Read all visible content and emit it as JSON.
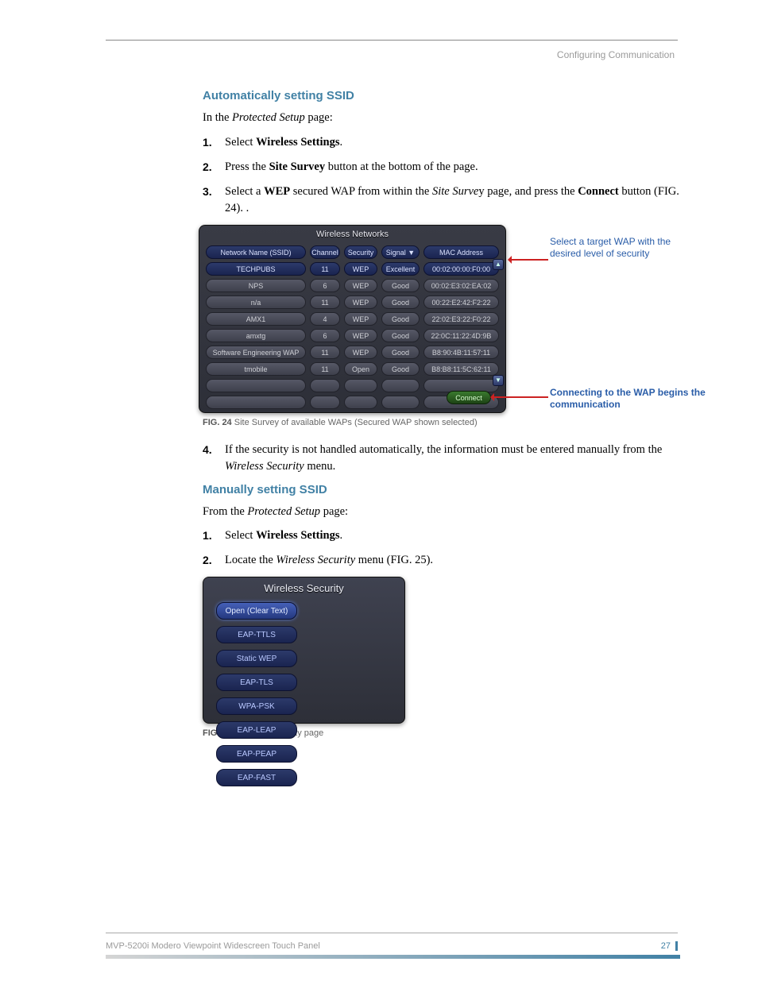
{
  "page": {
    "header_right": "Configuring Communication",
    "footer_model": "MVP-5200i Modero Viewpoint Widescreen Touch Panel",
    "page_number": "27"
  },
  "auto": {
    "heading": "Automatically setting SSID",
    "intro_pre": "In the ",
    "intro_em": "Protected Setup",
    "intro_post": " page:",
    "s1_pre": "Select ",
    "s1_bold": "Wireless Settings",
    "s1_post": ".",
    "s2_pre": "Press the ",
    "s2_bold": "Site Survey",
    "s2_post": " button at the bottom of the page.",
    "s3_p1": "Select a ",
    "s3_b1": "WEP",
    "s3_p2": " secured WAP from within the ",
    "s3_em": "Site Surve",
    "s3_p3": "y page, and press the ",
    "s3_b2": "Connect",
    "s3_p4": " button (FIG. 24). .",
    "s4": "If the security is not handled automatically, the information must be entered manually from the ",
    "s4_em": "Wireless Security",
    "s4_post": " menu."
  },
  "fig24": {
    "panel_title": "Wireless Networks",
    "headers": [
      "Network Name (SSID)",
      "Channel",
      "Security",
      "Signal  ▼",
      "MAC Address"
    ],
    "rows": [
      {
        "ssid": "TECHPUBS",
        "ch": "11",
        "sec": "WEP",
        "sig": "Excellent",
        "mac": "00:02:00:00:F0:00",
        "selected": true
      },
      {
        "ssid": "NPS",
        "ch": "6",
        "sec": "WEP",
        "sig": "Good",
        "mac": "00:02:E3:02:EA:02"
      },
      {
        "ssid": "n/a",
        "ch": "11",
        "sec": "WEP",
        "sig": "Good",
        "mac": "00:22:E2:42:F2:22"
      },
      {
        "ssid": "AMX1",
        "ch": "4",
        "sec": "WEP",
        "sig": "Good",
        "mac": "22:02:E3:22:F0:22"
      },
      {
        "ssid": "amxtg",
        "ch": "6",
        "sec": "WEP",
        "sig": "Good",
        "mac": "22:0C:11:22:4D:9B"
      },
      {
        "ssid": "Software Engineering WAP",
        "ch": "11",
        "sec": "WEP",
        "sig": "Good",
        "mac": "B8:90:4B:11:57:11"
      },
      {
        "ssid": "tmobile",
        "ch": "11",
        "sec": "Open",
        "sig": "Good",
        "mac": "B8:B8:11:5C:62:11"
      }
    ],
    "empty_rows": 3,
    "connect_label": "Connect",
    "callout_a": "Select a target WAP with the desired level of security",
    "callout_b": "Connecting to the WAP begins the communication",
    "caption_b": "FIG. 24",
    "caption_t": "  Site Survey of available WAPs (Secured WAP shown selected)",
    "colors": {
      "callout": "#2a5da8",
      "arrow": "#c22",
      "hdr_bg1": "#2c3a6a",
      "hdr_bg2": "#1a2450",
      "cell_bg1": "#565866",
      "cell_bg2": "#3e404c",
      "connect_bg1": "#3a7a2e",
      "connect_bg2": "#1d4315"
    }
  },
  "manual": {
    "heading": "Manually setting SSID",
    "intro_pre": "From the ",
    "intro_em": "Protected Setup",
    "intro_post": " page:",
    "s1_pre": "Select ",
    "s1_bold": "Wireless Settings",
    "s1_post": ".",
    "s2_pre": "Locate the ",
    "s2_em": "Wireless Security",
    "s2_post": " menu (FIG. 25)."
  },
  "fig25": {
    "panel_title": "Wireless Security",
    "buttons": [
      {
        "label": "Open (Clear Text)",
        "selected": true
      },
      {
        "label": "EAP-TTLS"
      },
      {
        "label": "Static WEP"
      },
      {
        "label": "EAP-TLS"
      },
      {
        "label": "WPA-PSK"
      },
      {
        "label": "EAP-LEAP"
      },
      {
        "label": "EAP-PEAP"
      },
      {
        "label": "EAP-FAST"
      }
    ],
    "caption_b": "FIG. 25",
    "caption_t": "  Wireless Security page"
  }
}
